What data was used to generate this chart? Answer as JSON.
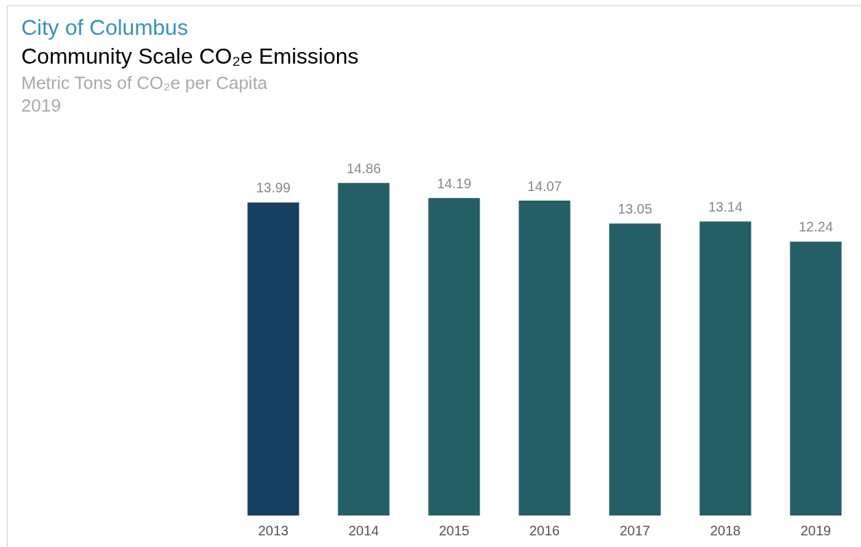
{
  "chart_data": {
    "type": "bar",
    "title": "City of Columbus",
    "subtitle": "Community Scale CO₂e Emissions",
    "annotations": [
      "Metric Tons of CO₂e per Capita",
      "2019"
    ],
    "categories": [
      "2013",
      "2014",
      "2015",
      "2016",
      "2017",
      "2018",
      "2019"
    ],
    "values": [
      13.99,
      14.86,
      14.19,
      14.07,
      13.05,
      13.14,
      12.24
    ],
    "colors": [
      "#15405f",
      "#255f66",
      "#255f66",
      "#255f66",
      "#255f66",
      "#255f66",
      "#255f66"
    ],
    "data_labels": true,
    "grid": false,
    "legend": false
  }
}
